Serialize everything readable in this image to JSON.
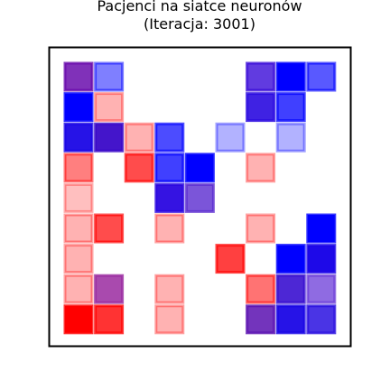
{
  "chart_data": {
    "type": "heatmap",
    "title_lines": [
      "Pacjenci na siatce neuronów",
      "(Iteracja: 3001)"
    ],
    "xlabel": "",
    "ylabel": "",
    "grid_size": [
      10,
      10
    ],
    "axes_visible": false,
    "frame_color": "#000000",
    "cell_edge_alpha": 0.8,
    "cells": [
      {
        "row": 0,
        "col": 0,
        "color": "#6a0dad",
        "alpha": 0.85
      },
      {
        "row": 0,
        "col": 1,
        "color": "#0000ff",
        "alpha": 0.5
      },
      {
        "row": 0,
        "col": 6,
        "color": "#3a0ad8",
        "alpha": 0.8
      },
      {
        "row": 0,
        "col": 7,
        "color": "#0000ff",
        "alpha": 1.0
      },
      {
        "row": 0,
        "col": 8,
        "color": "#0000ff",
        "alpha": 0.65
      },
      {
        "row": 1,
        "col": 0,
        "color": "#0000ff",
        "alpha": 1.0
      },
      {
        "row": 1,
        "col": 1,
        "color": "#ff0000",
        "alpha": 0.3
      },
      {
        "row": 1,
        "col": 6,
        "color": "#2a0ae0",
        "alpha": 0.9
      },
      {
        "row": 1,
        "col": 7,
        "color": "#0000ff",
        "alpha": 0.75
      },
      {
        "row": 2,
        "col": 0,
        "color": "#1a06e6",
        "alpha": 0.95
      },
      {
        "row": 2,
        "col": 1,
        "color": "#3a08c8",
        "alpha": 0.95
      },
      {
        "row": 2,
        "col": 2,
        "color": "#ff0000",
        "alpha": 0.3
      },
      {
        "row": 2,
        "col": 3,
        "color": "#0000ff",
        "alpha": 0.7
      },
      {
        "row": 2,
        "col": 5,
        "color": "#0000ff",
        "alpha": 0.3
      },
      {
        "row": 2,
        "col": 7,
        "color": "#0000ff",
        "alpha": 0.3
      },
      {
        "row": 3,
        "col": 0,
        "color": "#ff0000",
        "alpha": 0.5
      },
      {
        "row": 3,
        "col": 2,
        "color": "#ff0000",
        "alpha": 0.7
      },
      {
        "row": 3,
        "col": 3,
        "color": "#0000ff",
        "alpha": 0.75
      },
      {
        "row": 3,
        "col": 4,
        "color": "#0000ff",
        "alpha": 1.0
      },
      {
        "row": 3,
        "col": 6,
        "color": "#ff0000",
        "alpha": 0.3
      },
      {
        "row": 4,
        "col": 0,
        "color": "#ff0000",
        "alpha": 0.25
      },
      {
        "row": 4,
        "col": 3,
        "color": "#2a06e0",
        "alpha": 0.95
      },
      {
        "row": 4,
        "col": 4,
        "color": "#5a2ad0",
        "alpha": 0.8
      },
      {
        "row": 5,
        "col": 0,
        "color": "#ff0000",
        "alpha": 0.3
      },
      {
        "row": 5,
        "col": 1,
        "color": "#ff0000",
        "alpha": 0.7
      },
      {
        "row": 5,
        "col": 3,
        "color": "#ff0000",
        "alpha": 0.3
      },
      {
        "row": 5,
        "col": 6,
        "color": "#ff0000",
        "alpha": 0.3
      },
      {
        "row": 5,
        "col": 8,
        "color": "#0000ff",
        "alpha": 1.0
      },
      {
        "row": 6,
        "col": 0,
        "color": "#ff0000",
        "alpha": 0.3
      },
      {
        "row": 6,
        "col": 5,
        "color": "#ff0000",
        "alpha": 0.75
      },
      {
        "row": 6,
        "col": 7,
        "color": "#0000ff",
        "alpha": 1.0
      },
      {
        "row": 6,
        "col": 8,
        "color": "#1a04e8",
        "alpha": 0.98
      },
      {
        "row": 7,
        "col": 0,
        "color": "#ff0000",
        "alpha": 0.3
      },
      {
        "row": 7,
        "col": 1,
        "color": "#9a2aa0",
        "alpha": 0.85
      },
      {
        "row": 7,
        "col": 3,
        "color": "#ff0000",
        "alpha": 0.3
      },
      {
        "row": 7,
        "col": 6,
        "color": "#ff0000",
        "alpha": 0.55
      },
      {
        "row": 7,
        "col": 7,
        "color": "#3a10d0",
        "alpha": 0.9
      },
      {
        "row": 7,
        "col": 8,
        "color": "#6a3ad8",
        "alpha": 0.75
      },
      {
        "row": 8,
        "col": 0,
        "color": "#ff0000",
        "alpha": 1.0
      },
      {
        "row": 8,
        "col": 1,
        "color": "#ff0000",
        "alpha": 0.8
      },
      {
        "row": 8,
        "col": 3,
        "color": "#ff0000",
        "alpha": 0.3
      },
      {
        "row": 8,
        "col": 6,
        "color": "#5a10b0",
        "alpha": 0.85
      },
      {
        "row": 8,
        "col": 7,
        "color": "#1a06e6",
        "alpha": 0.95
      },
      {
        "row": 8,
        "col": 8,
        "color": "#2a10e0",
        "alpha": 0.85
      }
    ]
  }
}
